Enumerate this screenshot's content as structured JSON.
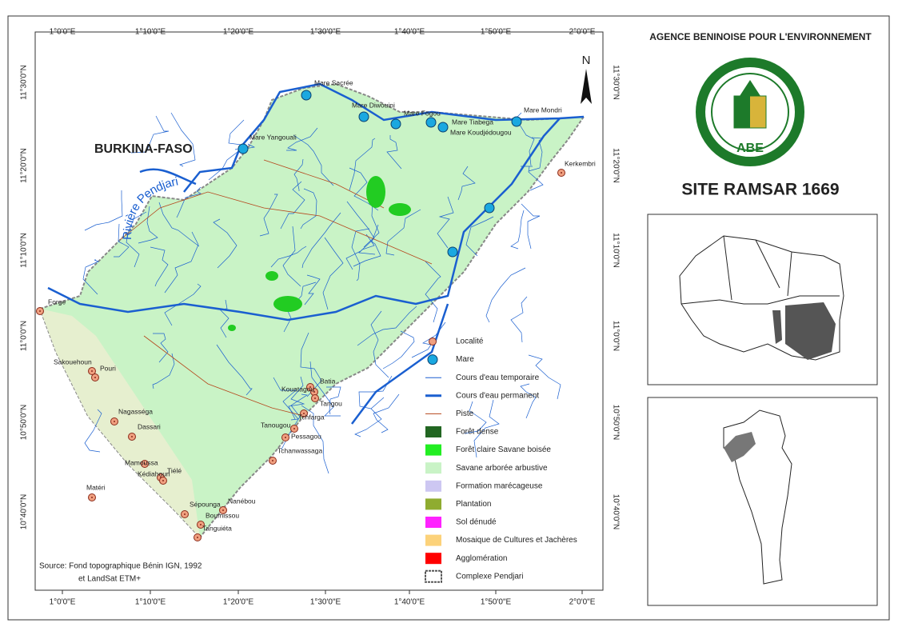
{
  "header": {
    "agency": "AGENCE BENINOISE POUR L'ENVIRONNEMENT",
    "logo_text": "ABE",
    "site_title": "SITE RAMSAR 1669"
  },
  "map": {
    "north": "N",
    "country_label": "BURKINA-FASO",
    "river_label": "Rivière Pendjari",
    "source": [
      "Source: Fond topographique Bénin IGN, 1992",
      "et LandSat ETM+"
    ],
    "graticule": {
      "longitudes": [
        "1°0'0\"E",
        "1°10'0\"E",
        "1°20'0\"E",
        "1°30'0\"E",
        "1°40'0\"E",
        "1°50'0\"E",
        "2°0'0\"E"
      ],
      "latitudes": [
        "11°30'0\"N",
        "11°20'0\"N",
        "11°10'0\"N",
        "11°0'0\"N",
        "10°50'0\"N",
        "10°40'0\"N"
      ]
    },
    "localities": [
      "Forge",
      "Sakouehoun",
      "Pouri",
      "Nagasséga",
      "Dassari",
      "Mamoussa",
      "Kédiahoun",
      "Tiélé",
      "Matéri",
      "Sépounga",
      "Nanébou",
      "Boumissou",
      "Tanguiéta",
      "Batia",
      "Kouatagou",
      "Tangou",
      "Tchfarga",
      "Tanougou",
      "Pessagou",
      "Tchanwassaga",
      "Kerkembri"
    ],
    "mares": [
      "Mare Sacrée",
      "Mare Diwouini",
      "Mare Fogou",
      "Mare Tiabega",
      "Mare Koudjédougou",
      "Mare Mondri",
      "Mare Yangouali"
    ]
  },
  "legend": {
    "items": [
      "Localité",
      "Mare",
      "Cours d'eau temporaire",
      "Cours d'eau permanent",
      "Piste",
      "Forêt dense",
      "Forêt  claire Savane boisée",
      "Savane arborée arbustive",
      "Formation marécageuse",
      "Plantation",
      "Sol dénudé",
      "Mosaique de Cultures et Jachères",
      "Agglomération",
      "Complexe Pendjari"
    ]
  }
}
